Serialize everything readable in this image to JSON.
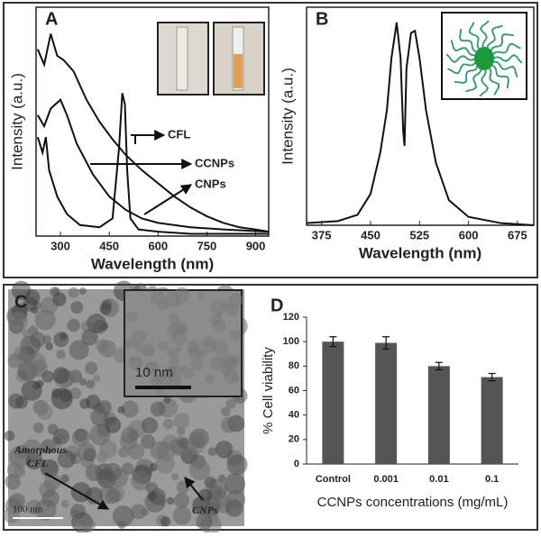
{
  "chart_data": [
    {
      "type": "line",
      "panel": "A",
      "x_label": "Wavelength (nm)",
      "y_label": "Intensity (a.u.)",
      "xlim": [
        225,
        940
      ],
      "xticks": [
        300,
        450,
        600,
        750,
        900
      ],
      "ylim": [
        0,
        100
      ],
      "series": [
        {
          "name": "CCNPs",
          "color": "#111111",
          "x": [
            230,
            250,
            270,
            290,
            310,
            340,
            380,
            420,
            460,
            500,
            550,
            600,
            650,
            700,
            750,
            800,
            850,
            900,
            940
          ],
          "values": [
            85,
            78,
            92,
            82,
            80,
            75,
            62,
            52,
            44,
            37,
            30,
            24,
            18,
            13,
            9,
            6,
            4,
            3,
            2
          ]
        },
        {
          "name": "CNPs",
          "color": "#111111",
          "x": [
            230,
            250,
            270,
            300,
            320,
            350,
            400,
            450,
            500,
            550,
            600,
            700,
            800,
            940
          ],
          "values": [
            55,
            50,
            58,
            62,
            55,
            42,
            28,
            18,
            12,
            8,
            6,
            4,
            3,
            2
          ]
        },
        {
          "name": "CFL",
          "color": "#111111",
          "x": [
            230,
            245,
            255,
            265,
            290,
            320,
            360,
            420,
            460,
            480,
            490,
            498,
            505,
            515,
            540,
            600,
            700,
            940
          ],
          "values": [
            45,
            38,
            45,
            30,
            18,
            10,
            5,
            4,
            8,
            40,
            65,
            60,
            30,
            8,
            3,
            2,
            1,
            1
          ]
        }
      ]
    },
    {
      "type": "line",
      "panel": "B",
      "x_label": "Wavelength (nm)",
      "y_label": "Intensity (a.u.)",
      "xlim": [
        352,
        700
      ],
      "xticks": [
        375,
        450,
        525,
        600,
        675
      ],
      "ylim": [
        0,
        100
      ],
      "series": [
        {
          "color": "#111111",
          "x": [
            352,
            400,
            430,
            450,
            465,
            475,
            482,
            490,
            496,
            500,
            502,
            505,
            512,
            518,
            525,
            535,
            550,
            570,
            600,
            650,
            700
          ],
          "values": [
            1,
            2,
            5,
            15,
            35,
            55,
            80,
            97,
            80,
            45,
            38,
            75,
            92,
            93,
            80,
            55,
            30,
            12,
            4,
            1,
            0
          ]
        }
      ]
    },
    {
      "type": "bar",
      "panel": "D",
      "x_label": "CCNPs concentrations (mg/mL)",
      "y_label": "% Cell viability",
      "categories": [
        "Control",
        "0.001",
        "0.01",
        "0.1"
      ],
      "values": [
        100,
        99,
        80,
        71
      ],
      "errors": [
        4,
        5,
        3,
        3
      ],
      "color": "#555555",
      "ylim": [
        0,
        120
      ],
      "yticks": [
        0,
        20,
        40,
        60,
        80,
        100,
        120
      ]
    }
  ],
  "panel_c": {
    "label": "C",
    "inset_scale": "10 nm",
    "scale": "100 nm",
    "annotation_amorphous": [
      "Amorphous",
      "CFL"
    ],
    "annotation_particles": "CNPs"
  }
}
